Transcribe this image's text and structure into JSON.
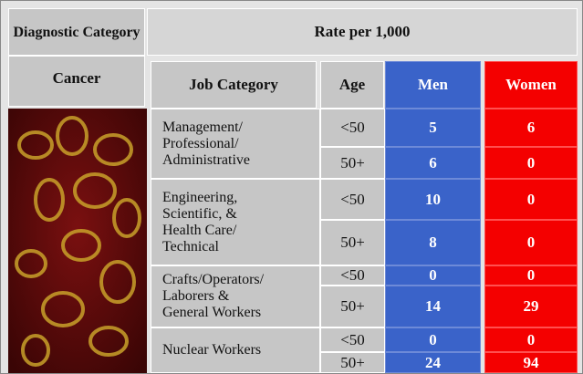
{
  "header": {
    "diagnostic_category": "Diagnostic Category",
    "rate_title": "Rate per 1,000"
  },
  "columns": {
    "diagnosis": "Cancer",
    "job": "Job Category",
    "age": "Age",
    "men": "Men",
    "women": "Women"
  },
  "groups": [
    {
      "job_category": "Management/\nProfessional/\nAdministrative",
      "rows": [
        {
          "age": "<50",
          "men": 5,
          "women": 6
        },
        {
          "age": "50+",
          "men": 6,
          "women": 0
        }
      ]
    },
    {
      "job_category": "Engineering,\nScientific, &\nHealth Care/\nTechnical",
      "rows": [
        {
          "age": "<50",
          "men": 10,
          "women": 0
        },
        {
          "age": "50+",
          "men": 8,
          "women": 0
        }
      ]
    },
    {
      "job_category": "Crafts/Operators/\nLaborers &\nGeneral Workers",
      "rows": [
        {
          "age": "<50",
          "men": 0,
          "women": 0
        },
        {
          "age": "50+",
          "men": 14,
          "women": 29
        }
      ]
    },
    {
      "job_category": "Nuclear Workers",
      "rows": [
        {
          "age": "<50",
          "men": 0,
          "women": 0
        },
        {
          "age": "50+",
          "men": 24,
          "women": 94
        }
      ]
    }
  ]
}
